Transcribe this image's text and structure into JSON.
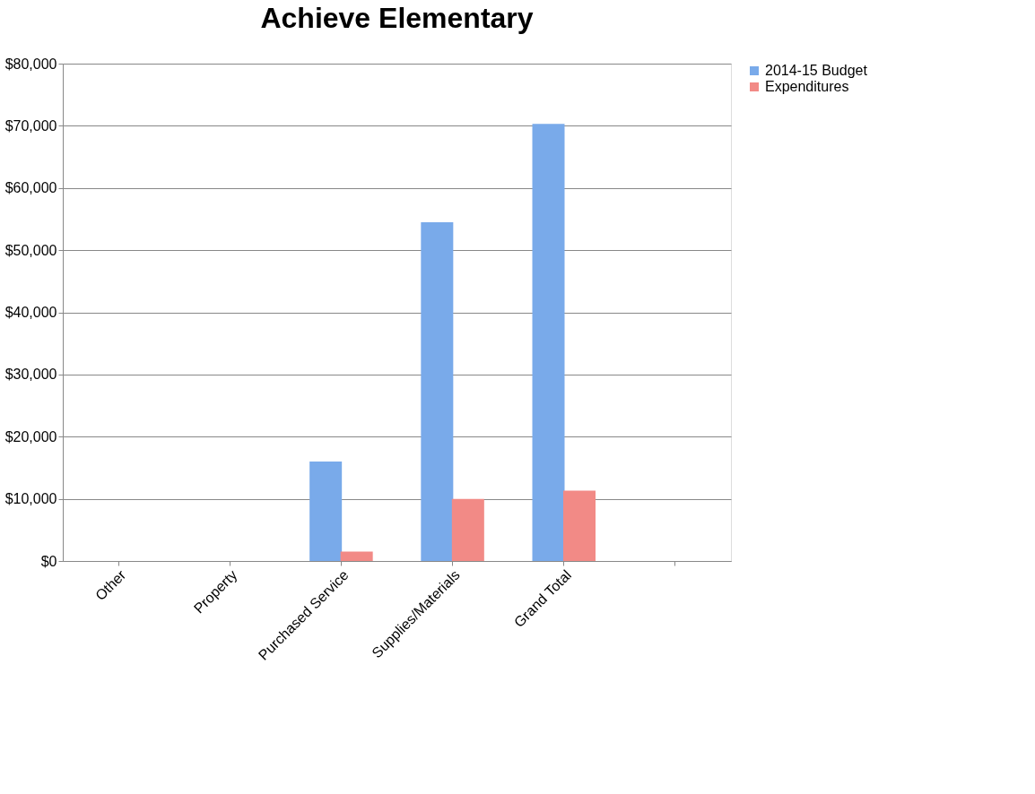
{
  "chart_data": {
    "type": "bar",
    "title": "Achieve Elementary",
    "categories": [
      "Other",
      "Property",
      "Purchased Service",
      "Supplies/Materials",
      "Grand Total",
      null
    ],
    "series": [
      {
        "name": "2014-15 Budget",
        "color": "#79aaea",
        "values": [
          null,
          null,
          16000,
          54500,
          70300,
          null
        ]
      },
      {
        "name": "Expenditures",
        "color": "#f28a86",
        "values": [
          null,
          null,
          1500,
          10000,
          11300,
          null
        ]
      }
    ],
    "ylim": [
      0,
      80000
    ],
    "yticks": [
      {
        "value": 0,
        "label": "$0"
      },
      {
        "value": 10000,
        "label": "$10,000"
      },
      {
        "value": 20000,
        "label": "$20,000"
      },
      {
        "value": 30000,
        "label": "$30,000"
      },
      {
        "value": 40000,
        "label": "$40,000"
      },
      {
        "value": 50000,
        "label": "$50,000"
      },
      {
        "value": 60000,
        "label": "$60,000"
      },
      {
        "value": 70000,
        "label": "$70,000"
      },
      {
        "value": 80000,
        "label": "$80,000"
      }
    ],
    "grid": "y",
    "legend": "right"
  }
}
